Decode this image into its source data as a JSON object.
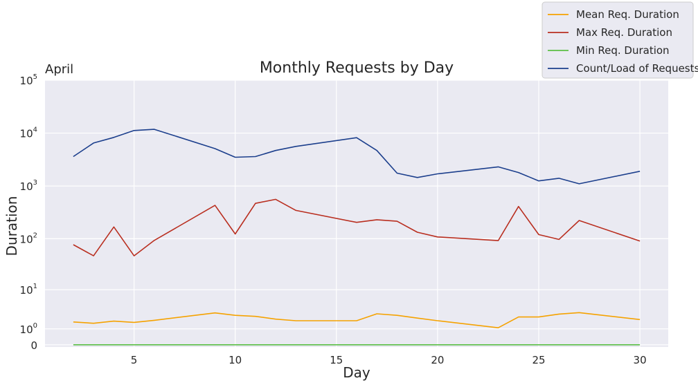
{
  "chart_data": {
    "type": "line",
    "title": "Monthly Requests by Day",
    "corner_label": "April",
    "xlabel": "Day",
    "ylabel": "Duration",
    "yscale": "symlog",
    "xlim": [
      0.6,
      31.4
    ],
    "ylim": [
      -0.1,
      100000
    ],
    "xticks": [
      5,
      10,
      15,
      20,
      25,
      30
    ],
    "yticks": [
      {
        "base": "0",
        "exp": ""
      },
      {
        "base": "10",
        "exp": "0"
      },
      {
        "base": "10",
        "exp": "1"
      },
      {
        "base": "10",
        "exp": "2"
      },
      {
        "base": "10",
        "exp": "3"
      },
      {
        "base": "10",
        "exp": "4"
      },
      {
        "base": "10",
        "exp": "5"
      }
    ],
    "ytick_values": [
      0,
      1,
      10,
      100,
      1000,
      10000,
      100000
    ],
    "grid": true,
    "legend_position": "top-right",
    "x": [
      2,
      3,
      4,
      5,
      6,
      9,
      10,
      11,
      12,
      13,
      16,
      17,
      18,
      19,
      20,
      23,
      24,
      25,
      26,
      27,
      30
    ],
    "series": [
      {
        "name": "Mean Req. Duration",
        "color": "#f5a200",
        "values": [
          1.7,
          1.55,
          1.8,
          1.65,
          1.9,
          3.0,
          2.6,
          2.45,
          2.05,
          1.85,
          1.85,
          2.85,
          2.6,
          2.2,
          1.85,
          1.1,
          2.35,
          2.35,
          2.8,
          3.05,
          2.0
        ]
      },
      {
        "name": "Max Req. Duration",
        "color": "#b92e1f",
        "values": [
          77,
          47,
          168,
          47,
          93,
          430,
          123,
          470,
          560,
          345,
          205,
          230,
          215,
          133,
          108,
          92,
          410,
          120,
          97,
          222,
          90
        ]
      },
      {
        "name": "Min Req. Duration",
        "color": "#5bbf45",
        "values": [
          0,
          0,
          0,
          0,
          0,
          0,
          0,
          0,
          0,
          0,
          0,
          0,
          0,
          0,
          0,
          0,
          0,
          0,
          0,
          0,
          0
        ]
      },
      {
        "name": "Count/Load of Requests",
        "color": "#1b3e8c",
        "values": [
          3600,
          6500,
          8300,
          11200,
          11800,
          5100,
          3500,
          3600,
          4700,
          5600,
          8200,
          4700,
          1750,
          1450,
          1700,
          2300,
          1800,
          1250,
          1400,
          1100,
          1900
        ]
      }
    ]
  }
}
